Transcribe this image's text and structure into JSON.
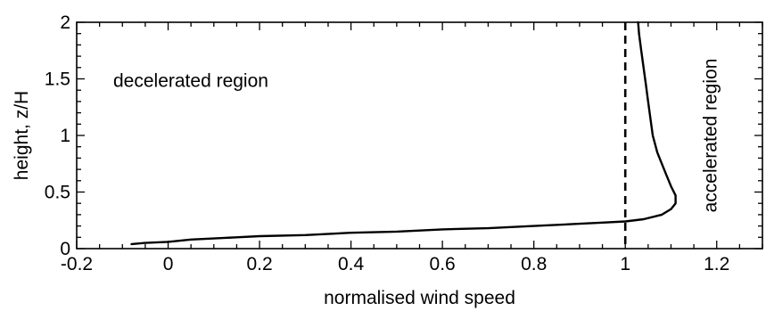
{
  "chart_data": {
    "type": "line",
    "title": "",
    "xlabel": "normalised wind speed",
    "ylabel": "height, z/H",
    "xlim": [
      -0.2,
      1.3
    ],
    "ylim": [
      0,
      2
    ],
    "x_ticks": [
      -0.2,
      0,
      0.2,
      0.4,
      0.6,
      0.8,
      1,
      1.2
    ],
    "x_tick_labels": [
      "-0.2",
      "0",
      "0.2",
      "0.4",
      "0.6",
      "0.8",
      "1",
      "1.2"
    ],
    "y_ticks": [
      0,
      0.5,
      1,
      1.5,
      2
    ],
    "y_tick_labels": [
      "0",
      "0.5",
      "1",
      "1.5",
      "2"
    ],
    "x_minor_step": 0.05,
    "y_minor_step": 0.1,
    "grid": false,
    "annotations": [
      {
        "text": "decelerated region",
        "x": -0.12,
        "y": 1.43,
        "rotation": 0
      },
      {
        "text": "accelerated region",
        "x": 1.2,
        "y": 1.0,
        "rotation": -90
      }
    ],
    "reference_lines": [
      {
        "orientation": "vertical",
        "x": 1.0,
        "style": "dashed"
      }
    ],
    "series": [
      {
        "style": "solid",
        "x": [
          -0.08,
          -0.05,
          0,
          0.05,
          0.1,
          0.15,
          0.2,
          0.3,
          0.4,
          0.5,
          0.6,
          0.7,
          0.8,
          0.9,
          0.95,
          1.0,
          1.04,
          1.08,
          1.1,
          1.11,
          1.11,
          1.1,
          1.09,
          1.08,
          1.07,
          1.06,
          1.055,
          1.05,
          1.045,
          1.04,
          1.035,
          1.03,
          1.028
        ],
        "y": [
          0.04,
          0.05,
          0.06,
          0.08,
          0.09,
          0.1,
          0.11,
          0.12,
          0.14,
          0.15,
          0.17,
          0.18,
          0.2,
          0.22,
          0.23,
          0.24,
          0.26,
          0.3,
          0.35,
          0.4,
          0.47,
          0.55,
          0.65,
          0.75,
          0.85,
          1.0,
          1.15,
          1.3,
          1.45,
          1.6,
          1.75,
          1.9,
          2.0
        ]
      }
    ]
  }
}
